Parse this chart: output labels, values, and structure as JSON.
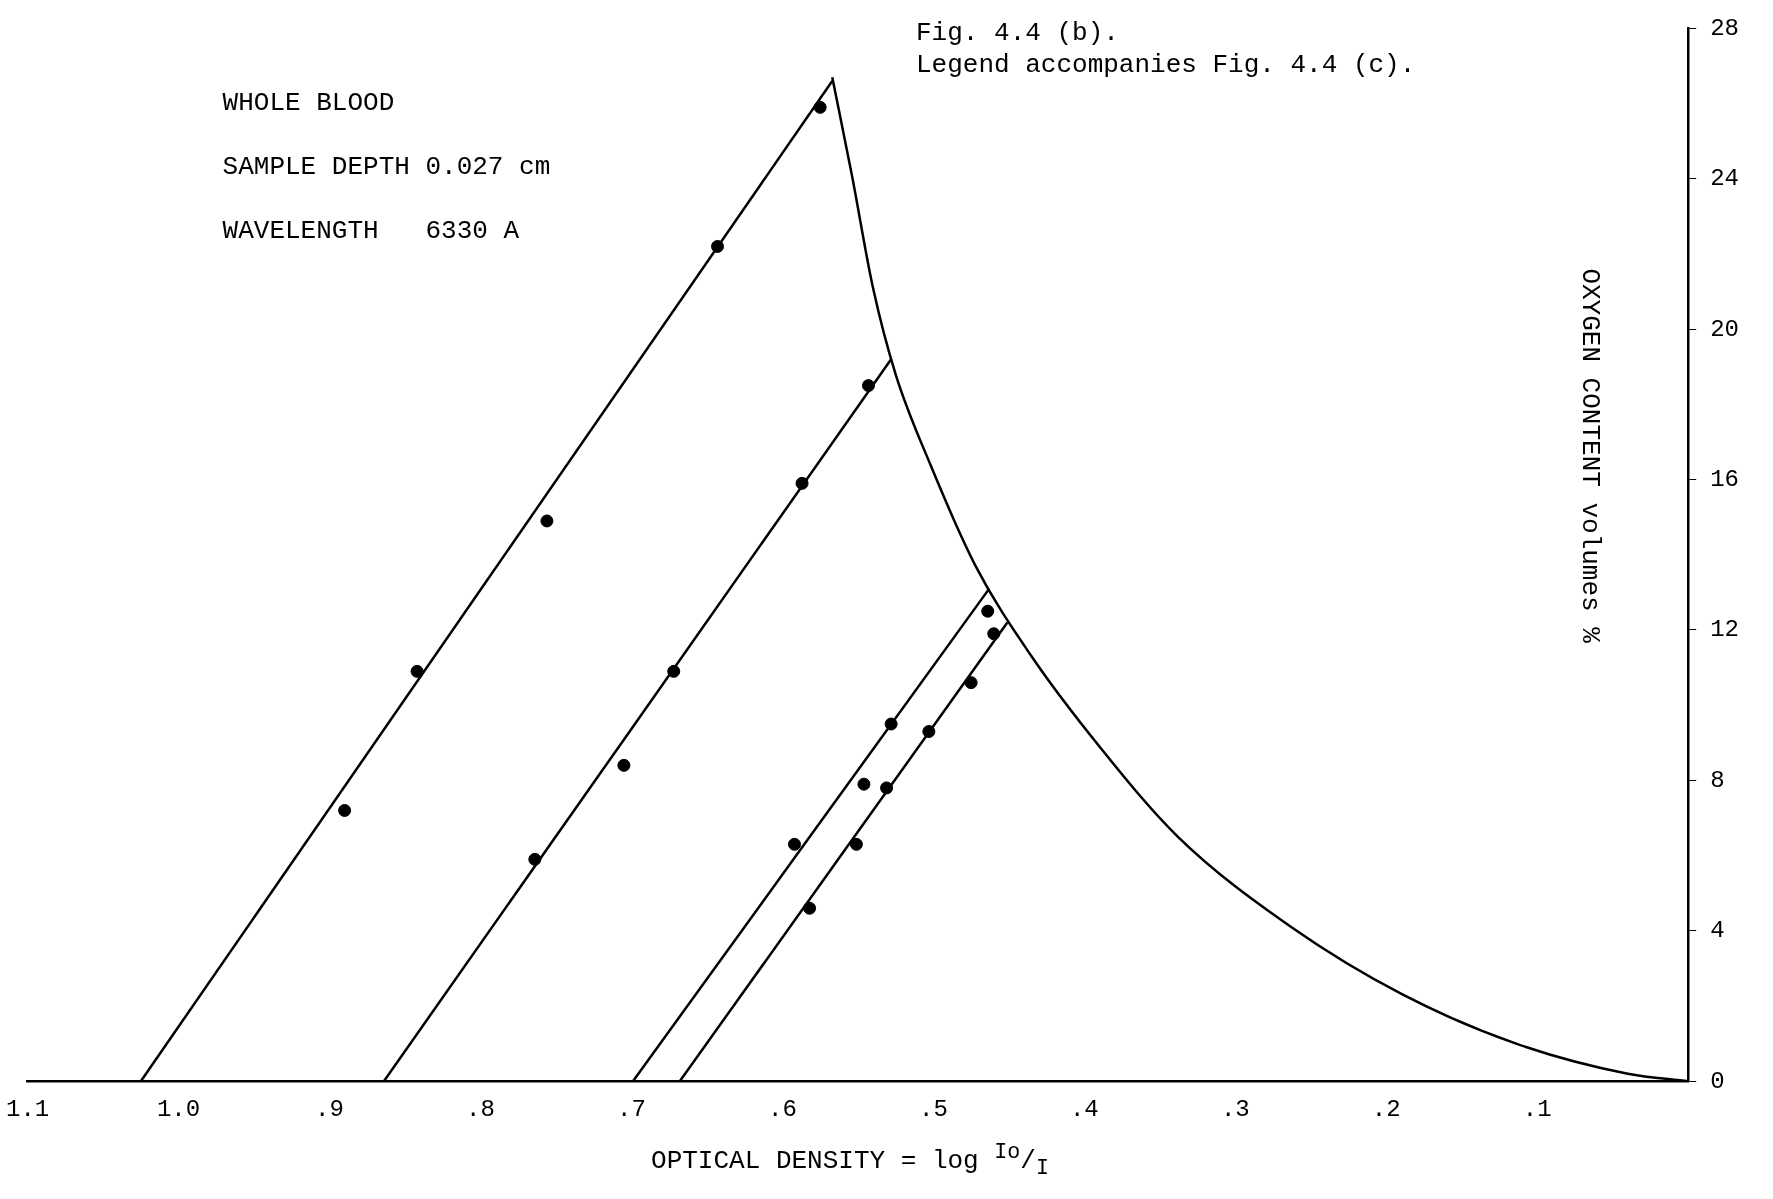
{
  "chart_data": {
    "type": "scatter",
    "title": "Fig. 4.4 (b).",
    "subtitle": "Legend accompanies Fig. 4.4 (c).",
    "xlabel": "OPTICAL DENSITY = log $^{Io}$/$_{I}$",
    "ylabel": "OXYGEN CONTENT volumes %",
    "annotations": [
      "WHOLE BLOOD",
      "SAMPLE DEPTH 0.027 cm",
      "WAVELENGTH   6330 A"
    ],
    "xlim": [
      1.1,
      0
    ],
    "xticks": [
      {
        "value": 1.1,
        "label": "1.1"
      },
      {
        "value": 1,
        "label": "1.0"
      },
      {
        "value": 0.9,
        "label": ".9"
      },
      {
        "value": 0.8,
        "label": ".8"
      },
      {
        "value": 0.7,
        "label": ".7"
      },
      {
        "value": 0.6,
        "label": ".6"
      },
      {
        "value": 0.5,
        "label": ".5"
      },
      {
        "value": 0.4,
        "label": ".4"
      },
      {
        "value": 0.3,
        "label": ".3"
      },
      {
        "value": 0.2,
        "label": ".2"
      },
      {
        "value": 0.1,
        "label": ".1"
      },
      {
        "value": 0,
        "label": null
      }
    ],
    "ylim": [
      0,
      28
    ],
    "yticks": [
      0,
      4,
      8,
      12,
      16,
      20,
      24,
      28
    ],
    "grid": false,
    "legend": false,
    "marker": "circle",
    "line_style": "solid",
    "series": [
      {
        "color": "#000000",
        "x": [
          0.89,
          0.842,
          0.756,
          0.643,
          0.575
        ],
        "values": [
          7.2,
          10.9,
          14.9,
          22.2,
          25.9
        ]
      },
      {
        "color": "#000000",
        "x": [
          0.764,
          0.705,
          0.672,
          0.587,
          0.543
        ],
        "values": [
          5.9,
          8.4,
          10.9,
          15.9,
          18.5
        ]
      },
      {
        "color": "#000000",
        "x": [
          0.592,
          0.546,
          0.528,
          0.464
        ],
        "values": [
          6.3,
          7.9,
          9.5,
          12.5
        ]
      },
      {
        "color": "#000000",
        "x": [
          0.582,
          0.551,
          0.531,
          0.503,
          0.475,
          0.46
        ],
        "values": [
          4.6,
          6.3,
          7.8,
          9.3,
          10.6,
          11.9
        ]
      },
      {
        "type": "line",
        "marker": "none",
        "color": "#000000",
        "x": [
          1.025,
          0.567
        ],
        "values": [
          0,
          26.6
        ]
      },
      {
        "type": "line",
        "marker": "none",
        "color": "#000000",
        "x": [
          0.864,
          0.528
        ],
        "values": [
          0,
          19.2
        ]
      },
      {
        "type": "line",
        "marker": "none",
        "color": "#000000",
        "x": [
          0.699,
          0.463
        ],
        "values": [
          0,
          13.1
        ]
      },
      {
        "type": "line",
        "marker": "none",
        "color": "#000000",
        "x": [
          0.668,
          0.451
        ],
        "values": [
          0,
          12.2
        ]
      },
      {
        "type": "line",
        "marker": "none",
        "color": "#000000",
        "x": [
          0.567,
          0.554,
          0.54,
          0.525,
          0.502,
          0.472,
          0.435,
          0.39,
          0.338,
          0.263,
          0.189,
          0.114,
          0.04,
          0
        ],
        "values": [
          26.7,
          24.1,
          21.1,
          18.8,
          16.4,
          13.7,
          11.3,
          8.9,
          6.5,
          4.1,
          2.3,
          1.0,
          0.2,
          0
        ]
      }
    ]
  }
}
